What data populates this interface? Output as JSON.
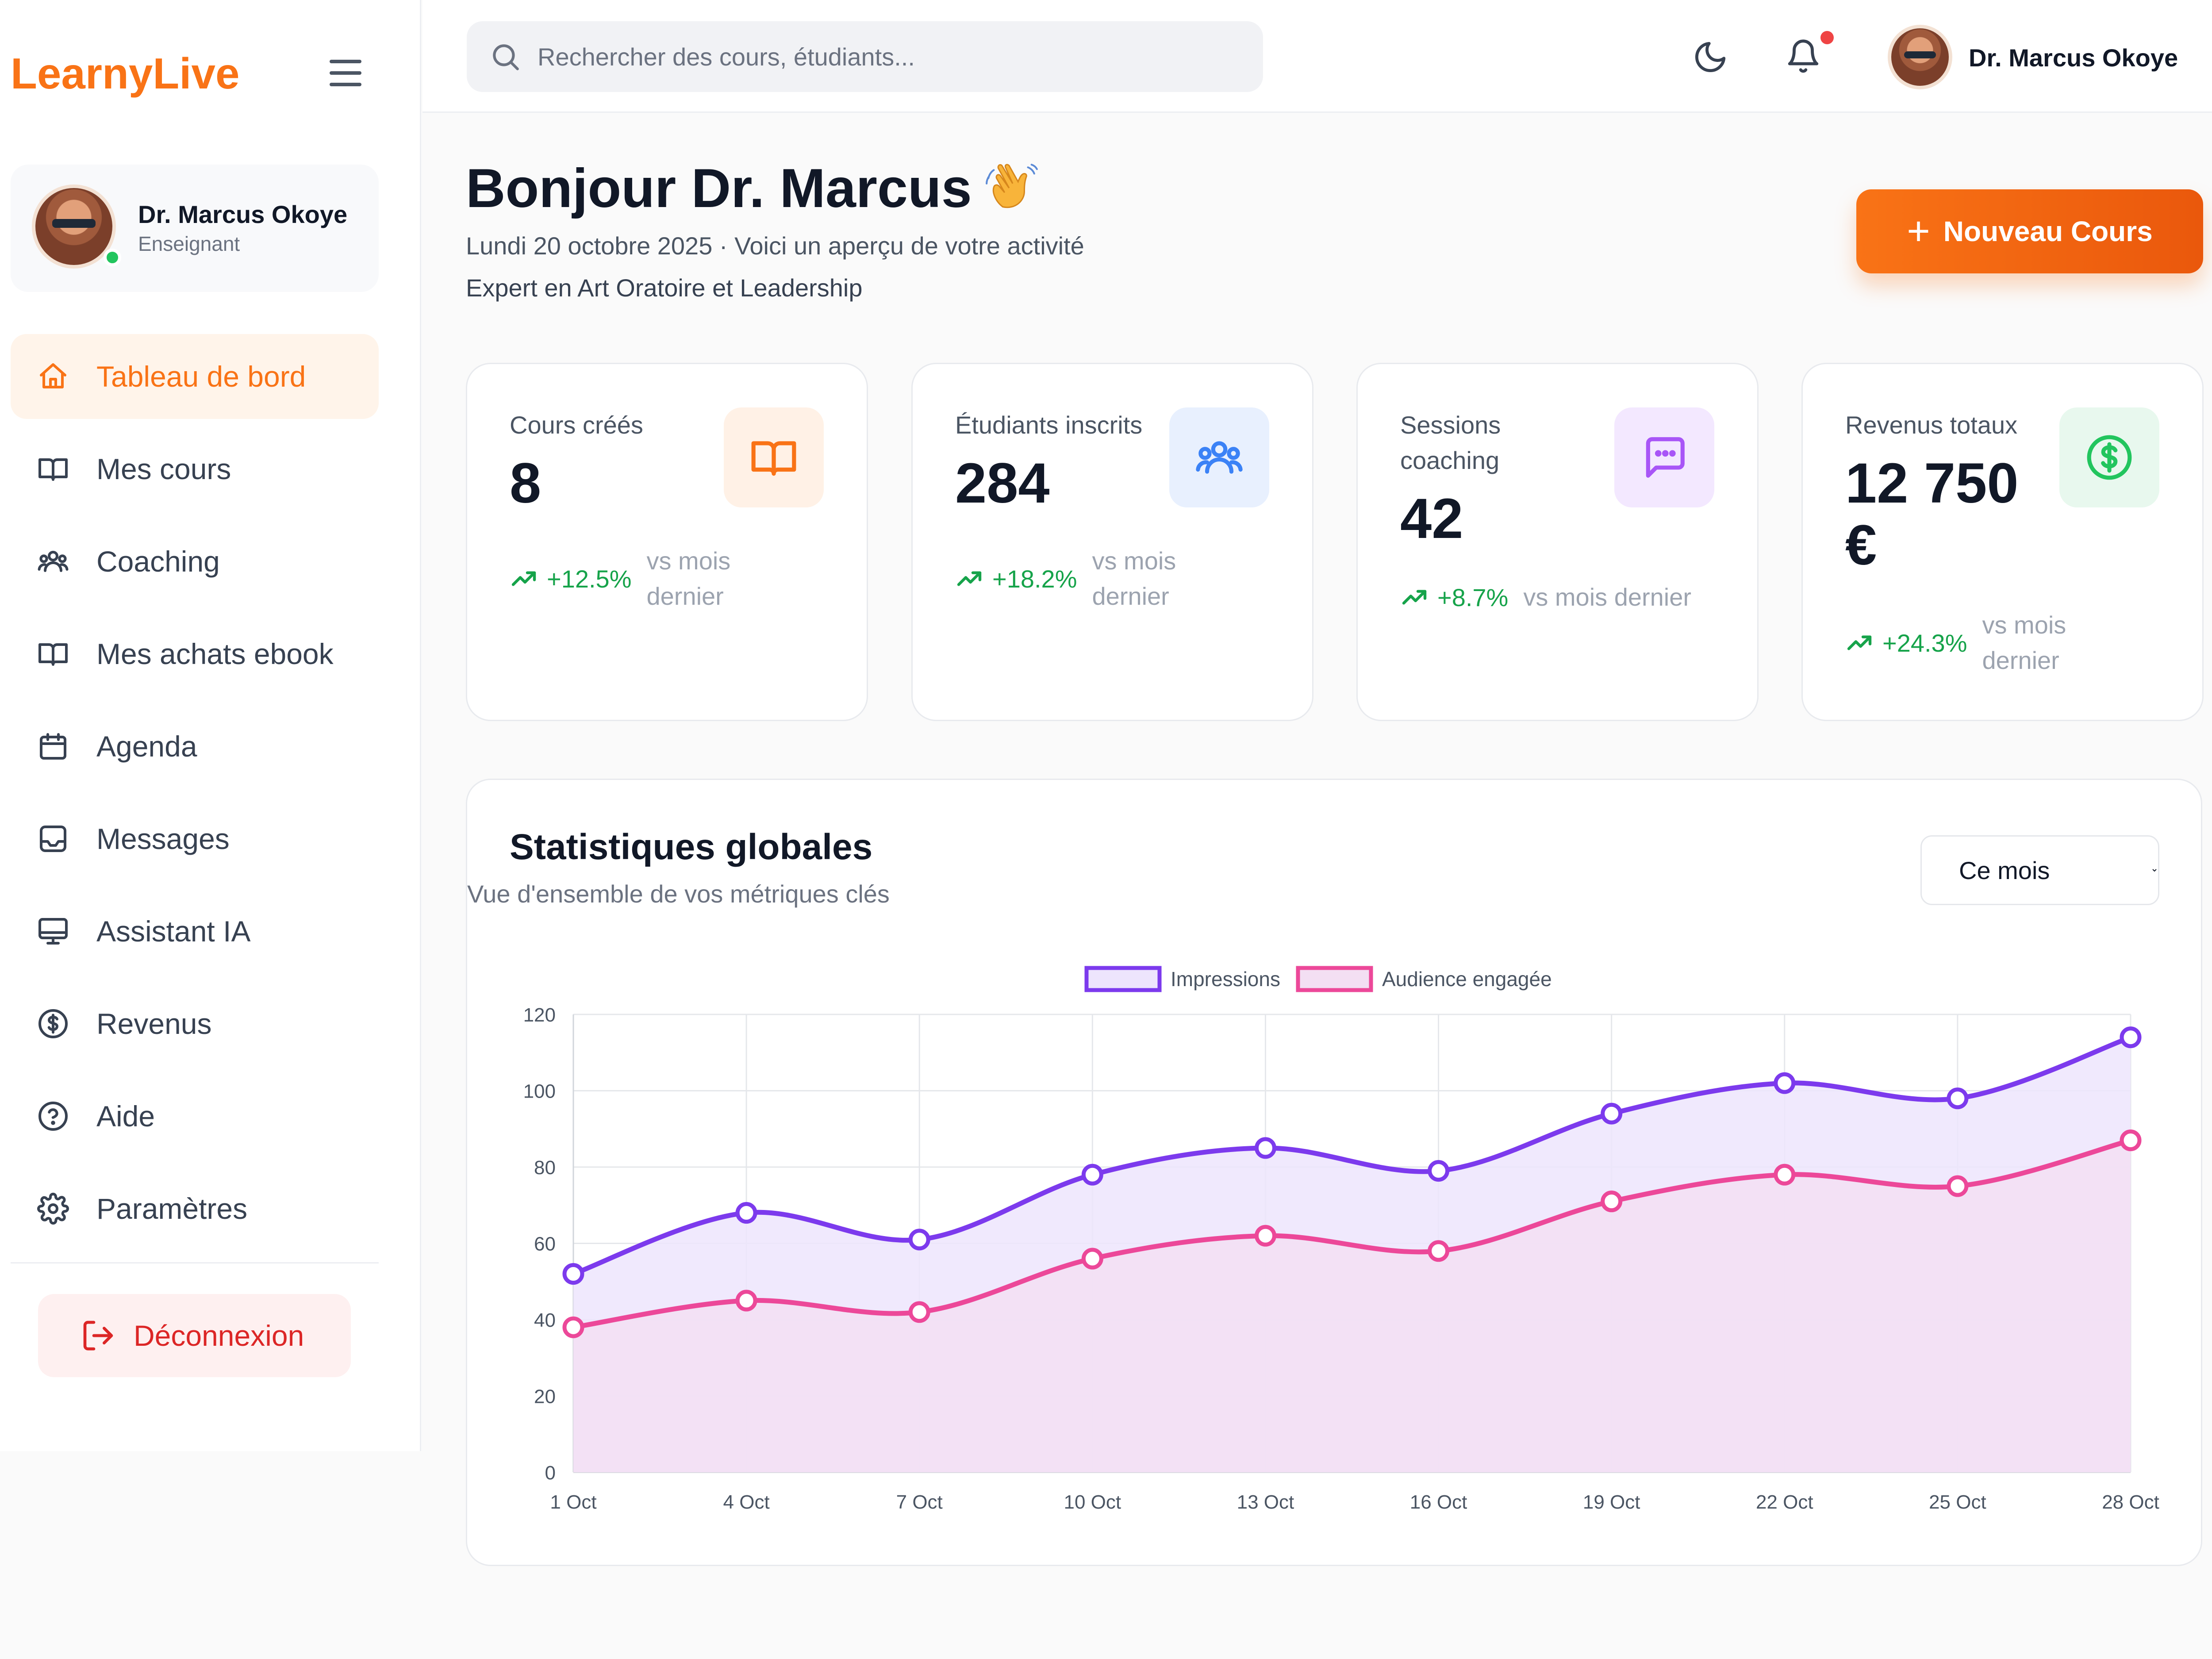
{
  "brand": {
    "logo": "LearnyLive"
  },
  "user": {
    "name": "Dr. Marcus Okoye",
    "role": "Enseignant"
  },
  "search": {
    "placeholder": "Rechercher des cours, étudiants..."
  },
  "nav": [
    {
      "label": "Tableau de bord",
      "icon": "home-icon",
      "active": true
    },
    {
      "label": "Mes cours",
      "icon": "book-icon"
    },
    {
      "label": "Coaching",
      "icon": "users-icon"
    },
    {
      "label": "Mes achats ebook",
      "icon": "book-open-icon"
    },
    {
      "label": "Agenda",
      "icon": "calendar-icon"
    },
    {
      "label": "Messages",
      "icon": "inbox-icon"
    },
    {
      "label": "Assistant IA",
      "icon": "monitor-icon"
    },
    {
      "label": "Revenus",
      "icon": "dollar-icon"
    },
    {
      "label": "Aide",
      "icon": "help-icon"
    },
    {
      "label": "Paramètres",
      "icon": "gear-icon"
    }
  ],
  "logout_label": "Déconnexion",
  "greeting": {
    "title": "Bonjour Dr. Marcus",
    "date_line": "Lundi 20 octobre 2025 · Voici un aperçu de votre activité",
    "expertise": "Expert en Art Oratoire et Leadership"
  },
  "new_course_label": "Nouveau Cours",
  "stats": [
    {
      "title": "Cours créés",
      "value": "8",
      "change": "+12.5%",
      "note": "vs mois dernier",
      "icon": "book-icon",
      "accent": "#f97316",
      "bg": "#fff1e6"
    },
    {
      "title": "Étudiants inscrits",
      "value": "284",
      "change": "+18.2%",
      "note": "vs mois dernier",
      "icon": "users-icon",
      "accent": "#3b82f6",
      "bg": "#e8f0fe"
    },
    {
      "title": "Sessions coaching",
      "value": "42",
      "change": "+8.7%",
      "note": "vs mois dernier",
      "icon": "message-icon",
      "accent": "#a855f7",
      "bg": "#f3e8ff"
    },
    {
      "title": "Revenus totaux",
      "value": "12 750 €",
      "change": "+24.3%",
      "note": "vs mois dernier",
      "icon": "dollar-icon",
      "accent": "#22c55e",
      "bg": "#e8f8ee"
    }
  ],
  "chart_section": {
    "title": "Statistiques globales",
    "subtitle": "Vue d'ensemble de vos métriques clés",
    "period": "Ce mois"
  },
  "chart_data": {
    "type": "line",
    "categories": [
      "1 Oct",
      "4 Oct",
      "7 Oct",
      "10 Oct",
      "13 Oct",
      "16 Oct",
      "19 Oct",
      "22 Oct",
      "25 Oct",
      "28 Oct"
    ],
    "series": [
      {
        "name": "Impressions",
        "color": "#7c3aed",
        "fill": "#ede5fd",
        "values": [
          52,
          68,
          61,
          78,
          85,
          79,
          94,
          102,
          98,
          114
        ]
      },
      {
        "name": "Audience engagée",
        "color": "#ec4899",
        "fill": "#f3dff3",
        "values": [
          38,
          45,
          42,
          56,
          62,
          58,
          71,
          78,
          75,
          87
        ]
      }
    ],
    "ylim": [
      0,
      120
    ],
    "yticks": [
      0,
      20,
      40,
      60,
      80,
      100,
      120
    ],
    "area": true,
    "grid": true,
    "legend": "top-center"
  }
}
